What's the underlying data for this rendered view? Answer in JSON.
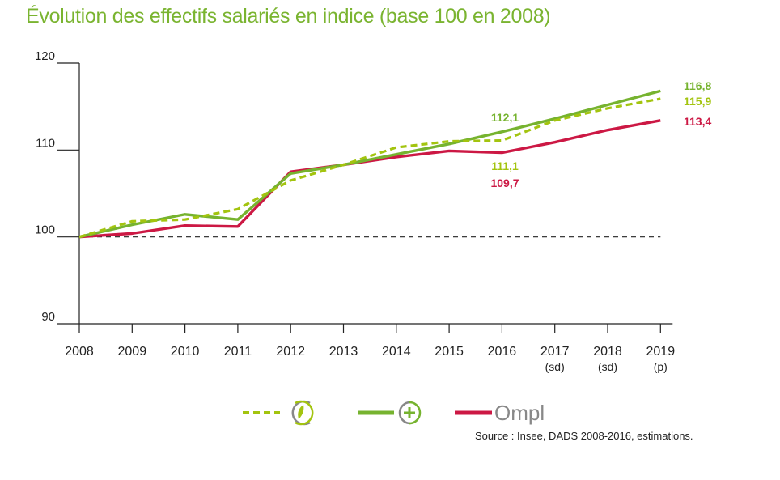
{
  "title": "Évolution des effectifs salariés en indice (base 100 en 2008)",
  "source": "Source : Insee, DADS 2008-2016, estimations.",
  "colors": {
    "sante": "#a3c40f",
    "plus": "#76b32f",
    "ompl": "#cc1844",
    "baseline": "#222222",
    "axis": "#222222"
  },
  "legend": {
    "icon1": "leaf-circle-icon",
    "icon2": "plus-circle-icon",
    "ompl_logo": "Ompl"
  },
  "chart_data": {
    "type": "line",
    "x": [
      "2008",
      "2009",
      "2010",
      "2011",
      "2012",
      "2013",
      "2014",
      "2015",
      "2016",
      "2017",
      "2018",
      "2019"
    ],
    "x_sublabels": [
      "",
      "",
      "",
      "",
      "",
      "",
      "",
      "",
      "",
      "(sd)",
      "(sd)",
      "(p)"
    ],
    "ylim": [
      90,
      120
    ],
    "yticks": [
      90,
      100,
      110,
      120
    ],
    "baseline": 100,
    "series": [
      {
        "key": "sante",
        "style": "dashed",
        "values": [
          100,
          101.8,
          102.0,
          103.2,
          106.5,
          108.3,
          110.3,
          111.0,
          111.1,
          113.4,
          114.8,
          115.9
        ]
      },
      {
        "key": "plus",
        "style": "solid",
        "values": [
          100,
          101.4,
          102.6,
          102.0,
          107.3,
          108.3,
          109.5,
          110.7,
          112.1,
          113.6,
          115.2,
          116.8
        ]
      },
      {
        "key": "ompl",
        "style": "solid",
        "values": [
          100,
          100.4,
          101.3,
          101.2,
          107.5,
          108.3,
          109.2,
          109.9,
          109.7,
          110.9,
          112.3,
          113.4
        ]
      }
    ],
    "annotations": [
      {
        "series": "plus",
        "text": "112,1"
      },
      {
        "series": "sante",
        "text": "111,1"
      },
      {
        "series": "ompl",
        "text": "109,7"
      },
      {
        "series": "plus",
        "text": "116,8"
      },
      {
        "series": "sante",
        "text": "115,9"
      },
      {
        "series": "ompl",
        "text": "113,4"
      }
    ]
  }
}
